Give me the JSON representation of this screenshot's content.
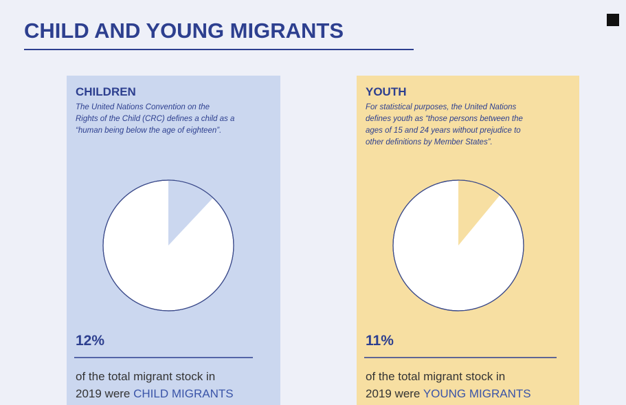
{
  "title": "CHILD AND YOUNG MIGRANTS",
  "chart_data": [
    {
      "type": "pie",
      "title": "CHILDREN",
      "description": [
        "The United Nations Convention on the",
        "Rights of the Child (CRC) defines a child as a",
        "“human being below the age of eighteen”."
      ],
      "values": [
        12
      ],
      "value_labels": [
        "12%"
      ],
      "color": "#cbd7ef",
      "caption": [
        "of the total migrant stock in",
        "2019 were"
      ],
      "highlight": "CHILD MIGRANTS"
    },
    {
      "type": "pie",
      "title": "YOUTH",
      "description": [
        "For statistical purposes, the United Nations",
        "defines youth as “those persons between the",
        "ages of 15 and 24 years without prejudice to",
        "other definitions by Member States”."
      ],
      "values": [
        11
      ],
      "value_labels": [
        "11%"
      ],
      "color": "#f7dfa2",
      "caption": [
        "of the total migrant stock in",
        "2019 were"
      ],
      "highlight": "YOUNG MIGRANTS"
    }
  ]
}
